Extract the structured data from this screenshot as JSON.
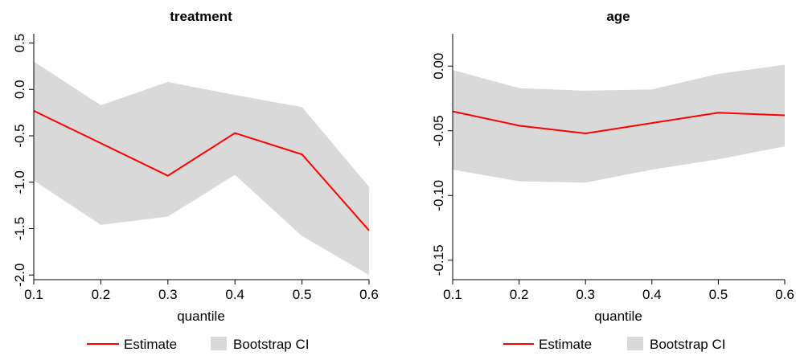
{
  "colors": {
    "estimate": "#ff0000",
    "ci_band": "#d9d9d9",
    "axis": "#000000"
  },
  "chart_data": [
    {
      "type": "line",
      "title": "treatment",
      "xlabel": "quantile",
      "ylabel": "",
      "x": [
        0.1,
        0.2,
        0.3,
        0.4,
        0.5,
        0.6
      ],
      "xlim": [
        0.1,
        0.6
      ],
      "xticks": [
        "0.1",
        "0.2",
        "0.3",
        "0.4",
        "0.5",
        "0.6"
      ],
      "ylim": [
        -2.05,
        0.6
      ],
      "yticks": [
        "-2.0",
        "-1.5",
        "-1.0",
        "-0.5",
        "0.0",
        "0.5"
      ],
      "grid": false,
      "series": [
        {
          "name": "Estimate",
          "kind": "line",
          "values": [
            -0.23,
            -0.58,
            -0.93,
            -0.47,
            -0.7,
            -1.52
          ]
        },
        {
          "name": "Bootstrap CI",
          "kind": "band",
          "lower": [
            -0.98,
            -1.46,
            -1.37,
            -0.92,
            -1.58,
            -2.0
          ],
          "upper": [
            0.3,
            -0.17,
            0.08,
            -0.06,
            -0.19,
            -1.05
          ]
        }
      ],
      "legend": {
        "position": "bottom",
        "items": [
          "Estimate",
          "Bootstrap CI"
        ]
      }
    },
    {
      "type": "line",
      "title": "age",
      "xlabel": "quantile",
      "ylabel": "",
      "x": [
        0.1,
        0.2,
        0.3,
        0.4,
        0.5,
        0.6
      ],
      "xlim": [
        0.1,
        0.6
      ],
      "xticks": [
        "0.1",
        "0.2",
        "0.3",
        "0.4",
        "0.5",
        "0.6"
      ],
      "ylim": [
        -0.165,
        0.025
      ],
      "yticks": [
        "-0.15",
        "-0.10",
        "-0.05",
        "0.00"
      ],
      "grid": false,
      "series": [
        {
          "name": "Estimate",
          "kind": "line",
          "values": [
            -0.035,
            -0.046,
            -0.052,
            -0.044,
            -0.036,
            -0.038
          ]
        },
        {
          "name": "Bootstrap CI",
          "kind": "band",
          "lower": [
            -0.08,
            -0.089,
            -0.09,
            -0.08,
            -0.072,
            -0.062
          ],
          "upper": [
            -0.003,
            -0.017,
            -0.019,
            -0.018,
            -0.006,
            0.001
          ]
        }
      ],
      "legend": {
        "position": "bottom",
        "items": [
          "Estimate",
          "Bootstrap CI"
        ]
      }
    }
  ]
}
